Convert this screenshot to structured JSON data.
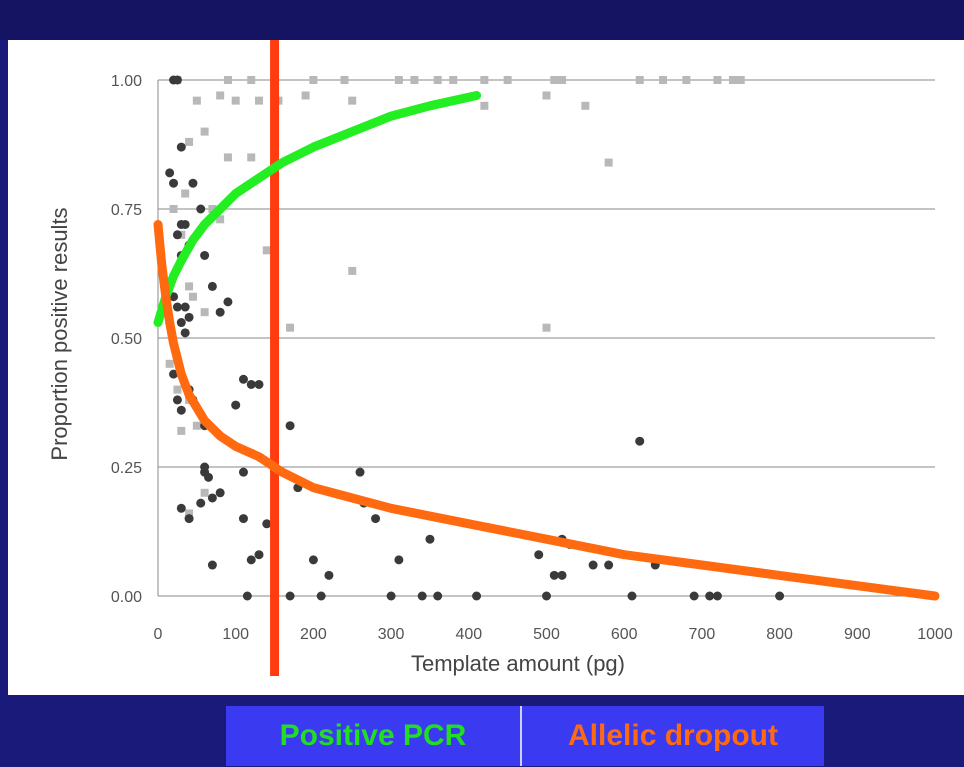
{
  "colors": {
    "background": "#1a1a7a",
    "panel": "#ffffff",
    "red_line": "#ff3c10",
    "green_curve": "#22ee22",
    "orange_curve": "#ff6a10",
    "dark_points": "#3a3a3a",
    "light_points": "#b8b8b8",
    "legend_bg": "#3a3af0"
  },
  "legend": {
    "left_label": "Positive PCR",
    "right_label": "Allelic dropout"
  },
  "chart_data": {
    "type": "scatter",
    "xlabel": "Template amount (pg)",
    "ylabel": "Proportion positive results",
    "xlim": [
      0,
      1000
    ],
    "ylim": [
      0,
      1
    ],
    "x_ticks": [
      "0",
      "100",
      "200",
      "300",
      "400",
      "500",
      "600",
      "700",
      "800",
      "900",
      "1000"
    ],
    "y_ticks": [
      "0.00",
      "0.25",
      "0.50",
      "0.75",
      "1.00"
    ],
    "grid": true,
    "series": [
      {
        "marker": "square",
        "color": "#b8b8b8",
        "x": [
          25,
          90,
          120,
          150,
          200,
          240,
          310,
          330,
          360,
          380,
          420,
          450,
          510,
          520,
          620,
          650,
          680,
          720,
          740,
          750,
          50,
          80,
          100,
          130,
          155,
          190,
          250,
          420,
          500,
          550,
          580,
          40,
          60,
          90,
          120,
          35,
          80,
          250,
          500,
          20,
          30,
          40,
          45,
          60,
          70,
          15,
          25,
          40,
          50,
          60,
          30,
          40,
          140,
          170
        ],
        "y": [
          1.0,
          1.0,
          1.0,
          1.0,
          1.0,
          1.0,
          1.0,
          1.0,
          1.0,
          1.0,
          1.0,
          1.0,
          1.0,
          1.0,
          1.0,
          1.0,
          1.0,
          1.0,
          1.0,
          1.0,
          0.96,
          0.97,
          0.96,
          0.96,
          0.96,
          0.97,
          0.96,
          0.95,
          0.97,
          0.95,
          0.84,
          0.88,
          0.9,
          0.85,
          0.85,
          0.78,
          0.73,
          0.63,
          0.52,
          0.75,
          0.7,
          0.6,
          0.58,
          0.55,
          0.75,
          0.45,
          0.4,
          0.38,
          0.33,
          0.2,
          0.32,
          0.16,
          0.67,
          0.52
        ]
      },
      {
        "marker": "circle",
        "color": "#3a3a3a",
        "x": [
          20,
          25,
          30,
          15,
          20,
          45,
          55,
          30,
          35,
          40,
          25,
          30,
          60,
          70,
          20,
          25,
          35,
          40,
          30,
          35,
          90,
          80,
          20,
          25,
          30,
          40,
          45,
          60,
          110,
          120,
          130,
          100,
          60,
          65,
          30,
          40,
          55,
          70,
          80,
          110,
          60,
          70,
          120,
          140,
          110,
          130,
          180,
          170,
          260,
          280,
          265,
          310,
          350,
          200,
          220,
          490,
          510,
          520,
          560,
          580,
          520,
          620,
          800,
          170,
          610,
          690,
          710,
          720,
          640,
          530,
          115,
          210,
          300,
          340,
          360,
          410,
          500
        ],
        "y": [
          1.0,
          1.0,
          0.87,
          0.82,
          0.8,
          0.8,
          0.75,
          0.72,
          0.72,
          0.68,
          0.7,
          0.66,
          0.66,
          0.6,
          0.58,
          0.56,
          0.56,
          0.54,
          0.53,
          0.51,
          0.57,
          0.55,
          0.43,
          0.38,
          0.36,
          0.4,
          0.38,
          0.33,
          0.42,
          0.41,
          0.41,
          0.37,
          0.25,
          0.23,
          0.17,
          0.15,
          0.18,
          0.19,
          0.2,
          0.15,
          0.24,
          0.06,
          0.07,
          0.14,
          0.24,
          0.08,
          0.21,
          0.33,
          0.24,
          0.15,
          0.18,
          0.07,
          0.11,
          0.07,
          0.04,
          0.08,
          0.04,
          0.04,
          0.06,
          0.06,
          0.11,
          0.3,
          0.0,
          0.0,
          0.0,
          0.0,
          0.0,
          0.0,
          0.06,
          0.1,
          0.0,
          0.0,
          0.0,
          0.0,
          0.0,
          0.0,
          0.0
        ]
      }
    ],
    "overlays": [
      {
        "kind": "vline",
        "x": 150,
        "color": "#ff3c10"
      },
      {
        "kind": "curve",
        "color": "#22ee22",
        "x": [
          0,
          10,
          20,
          30,
          45,
          60,
          80,
          100,
          130,
          160,
          200,
          250,
          300,
          350,
          410
        ],
        "y": [
          0.53,
          0.58,
          0.62,
          0.65,
          0.69,
          0.72,
          0.75,
          0.78,
          0.81,
          0.84,
          0.87,
          0.9,
          0.93,
          0.95,
          0.97
        ]
      },
      {
        "kind": "curve",
        "color": "#ff6a10",
        "x": [
          0,
          5,
          10,
          15,
          20,
          30,
          40,
          60,
          80,
          100,
          130,
          160,
          200,
          250,
          300,
          400,
          500,
          600,
          700,
          800,
          900,
          1000
        ],
        "y": [
          0.72,
          0.64,
          0.58,
          0.53,
          0.49,
          0.43,
          0.39,
          0.34,
          0.31,
          0.29,
          0.27,
          0.24,
          0.21,
          0.19,
          0.17,
          0.14,
          0.11,
          0.08,
          0.06,
          0.04,
          0.02,
          0.0
        ]
      }
    ]
  }
}
